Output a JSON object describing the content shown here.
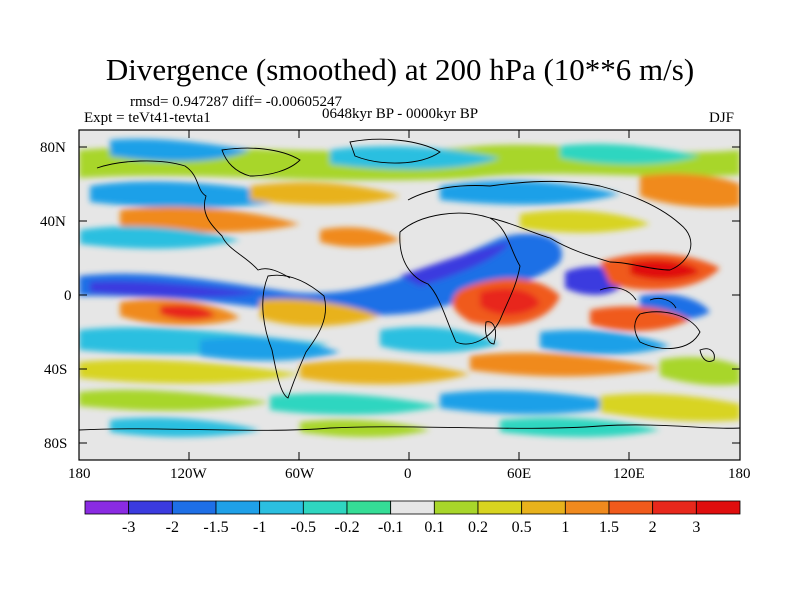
{
  "title": "Divergence (smoothed) at 200 hPa (10**6 m/s)",
  "stats": "rmsd= 0.947287 diff= -0.00605247",
  "experiment": "Expt = teVt41-tevta1",
  "period": "0648kyr BP - 0000kyr BP",
  "season": "DJF",
  "lat_ticks": [
    "80N",
    "40N",
    "0",
    "40S",
    "80S"
  ],
  "lon_ticks": [
    "180",
    "120W",
    "60W",
    "0",
    "60E",
    "120E",
    "180"
  ],
  "colorbar": {
    "labels": [
      "-3",
      "-2",
      "-1.5",
      "-1",
      "-0.5",
      "-0.2",
      "-0.1",
      "0.1",
      "0.2",
      "0.5",
      "1",
      "1.5",
      "2",
      "3"
    ],
    "colors": [
      "#8a2be2",
      "#3b3bdf",
      "#1e6fe6",
      "#1fa0e8",
      "#2bbfe0",
      "#2fd6c0",
      "#35dd96",
      "#e6e6e6",
      "#a8d62a",
      "#d8d420",
      "#e8b21c",
      "#f08a1e",
      "#f05a1c",
      "#e8281c",
      "#e00e0e"
    ]
  }
}
